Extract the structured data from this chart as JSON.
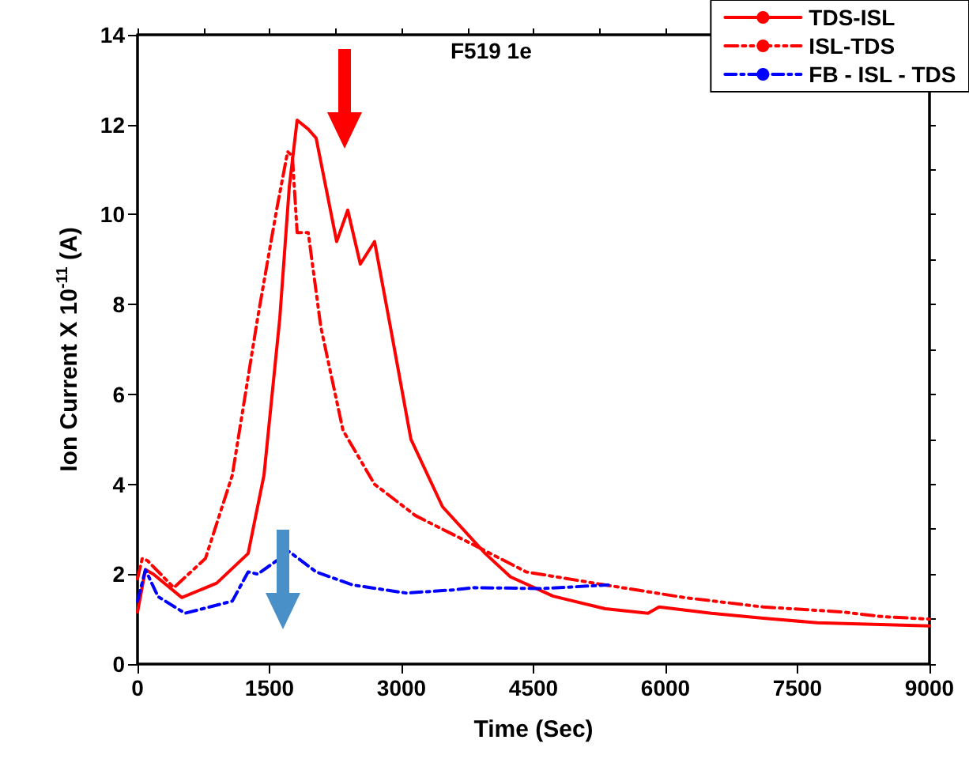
{
  "chart_data": {
    "type": "line",
    "annotations": [
      "F519 1e"
    ],
    "xlabel": "Time (Sec)",
    "ylabel": "Ion Current X 10$^{-11}$ (A)",
    "xlim": [
      0,
      9000
    ],
    "xticks": [
      0,
      1500,
      3000,
      4500,
      6000,
      7500,
      9000
    ],
    "ylim": [
      0,
      14
    ],
    "yticks": [
      0,
      2,
      4,
      6,
      8,
      10,
      12,
      14
    ],
    "grid": false,
    "legend": "top right",
    "marker": "none",
    "series": [
      {
        "name": "TDS-ISL",
        "color": "#ff0000",
        "line_style": "solid",
        "x": [
          0,
          90,
          180,
          503,
          900,
          1257,
          1437,
          1617,
          1724,
          1814,
          1940,
          2030,
          2263,
          2389,
          2532,
          2694,
          2874,
          3107,
          3466,
          3951,
          4239,
          4724,
          5316,
          5801,
          5927,
          6520,
          7112,
          7723,
          8441,
          9000
        ],
        "values": [
          1.16,
          2.1,
          2.0,
          1.48,
          1.8,
          2.46,
          4.2,
          7.7,
          10.6,
          12.1,
          11.9,
          11.7,
          9.4,
          10.1,
          8.9,
          9.4,
          7.5,
          5.0,
          3.5,
          2.46,
          1.94,
          1.51,
          1.23,
          1.13,
          1.27,
          1.13,
          1.02,
          0.92,
          0.88,
          0.85
        ]
      },
      {
        "name": "ISL-TDS",
        "color": "#ff0000",
        "line_style": "dashed",
        "x": [
          0,
          54,
          114,
          413,
          772,
          1077,
          1365,
          1580,
          1706,
          1760,
          1814,
          1940,
          2083,
          2335,
          2694,
          3161,
          3771,
          4418,
          5316,
          6214,
          7112,
          8010,
          8441,
          9000
        ],
        "values": [
          1.9,
          2.35,
          2.3,
          1.7,
          2.35,
          4.2,
          7.7,
          10.1,
          11.4,
          11.3,
          9.6,
          9.6,
          7.5,
          5.2,
          4.0,
          3.3,
          2.7,
          2.05,
          1.76,
          1.48,
          1.27,
          1.16,
          1.06,
          1.0
        ]
      },
      {
        "name": "FB - ISL - TDS",
        "color": "#0000ff",
        "line_style": "dotted",
        "x": [
          0,
          90,
          233,
          539,
          1077,
          1257,
          1365,
          1724,
          2030,
          2443,
          3053,
          3592,
          3826,
          4600,
          5350
        ],
        "values": [
          1.4,
          2.1,
          1.5,
          1.13,
          1.4,
          2.05,
          2.0,
          2.5,
          2.05,
          1.76,
          1.58,
          1.65,
          1.7,
          1.68,
          1.76
        ]
      }
    ]
  }
}
